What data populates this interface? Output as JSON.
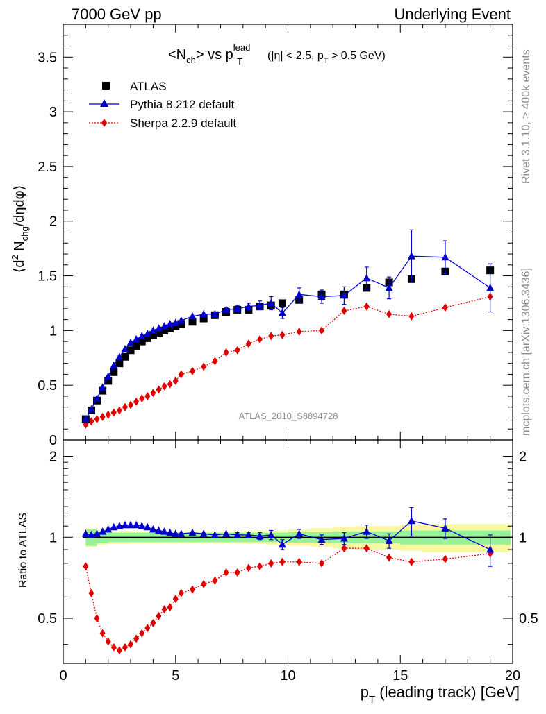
{
  "header": {
    "left": "7000 GeV pp",
    "right": "Underlying Event"
  },
  "side": {
    "rivet": "Rivet 3.1.10, ≥ 400k events",
    "mcplots": "mcplots.cern.ch [arXiv:1306.3436]"
  },
  "title": {
    "main": "<N",
    "main_sub": "ch",
    "vs": "> vs p",
    "vs_sup": "lead",
    "vs_sub": "T",
    "cond": "(|η| < 2.5, p",
    "cond_sub": "T",
    "cond_end": " > 0.5 GeV)"
  },
  "watermark": "ATLAS_2010_S8894728",
  "ylabel_top": {
    "pre": "⟨d",
    "sup": "2",
    "mid": " N",
    "sub": "chg",
    "post": "/dηdφ⟩"
  },
  "ylabel_bottom": "Ratio to ATLAS",
  "xlabel": {
    "pre": "p",
    "sub": "T",
    "post": " (leading track) [GeV]"
  },
  "legend": [
    {
      "label": "ATLAS",
      "color": "#000000",
      "marker": "square"
    },
    {
      "label": "Pythia 8.212 default",
      "color": "#0000cc",
      "marker": "triangle"
    },
    {
      "label": "Sherpa 2.2.9 default",
      "color": "#e00000",
      "marker": "diamond"
    }
  ],
  "colors": {
    "atlas": "#000000",
    "pythia": "#0000cc",
    "sherpa": "#e00000",
    "band_inner": "#98f098",
    "band_outer": "#f8f8a0"
  },
  "chart_data": [
    {
      "type": "scatter",
      "xlim": [
        0,
        20
      ],
      "ylim": [
        0,
        3.8
      ],
      "xticks": [
        "0",
        "5",
        "10",
        "15",
        "20"
      ],
      "yticks": [
        "0",
        "0.5",
        "1",
        "1.5",
        "2",
        "2.5",
        "3",
        "3.5"
      ],
      "series": [
        {
          "name": "ATLAS",
          "x": [
            1.0,
            1.25,
            1.5,
            1.75,
            2.0,
            2.25,
            2.5,
            2.75,
            3.0,
            3.25,
            3.5,
            3.75,
            4.0,
            4.25,
            4.5,
            4.75,
            5.0,
            5.25,
            5.75,
            6.25,
            6.75,
            7.25,
            7.75,
            8.25,
            8.75,
            9.25,
            9.75,
            10.5,
            11.5,
            12.5,
            13.5,
            14.5,
            15.5,
            17.0,
            19.0
          ],
          "y": [
            0.19,
            0.27,
            0.36,
            0.45,
            0.54,
            0.62,
            0.7,
            0.76,
            0.82,
            0.86,
            0.9,
            0.93,
            0.96,
            0.98,
            1.0,
            1.02,
            1.04,
            1.06,
            1.08,
            1.11,
            1.14,
            1.17,
            1.19,
            1.19,
            1.22,
            1.23,
            1.25,
            1.28,
            1.33,
            1.33,
            1.39,
            1.44,
            1.47,
            1.54,
            1.55
          ]
        },
        {
          "name": "Pythia 8.212 default",
          "x": [
            1.0,
            1.25,
            1.5,
            1.75,
            2.0,
            2.25,
            2.5,
            2.75,
            3.0,
            3.25,
            3.5,
            3.75,
            4.0,
            4.25,
            4.5,
            4.75,
            5.0,
            5.25,
            5.75,
            6.25,
            6.75,
            7.25,
            7.75,
            8.25,
            8.75,
            9.25,
            9.75,
            10.5,
            11.5,
            12.5,
            13.5,
            14.5,
            15.5,
            17.0,
            19.0
          ],
          "y": [
            0.19,
            0.28,
            0.38,
            0.48,
            0.58,
            0.68,
            0.76,
            0.83,
            0.89,
            0.92,
            0.95,
            0.97,
            1.0,
            1.02,
            1.04,
            1.06,
            1.07,
            1.09,
            1.13,
            1.15,
            1.15,
            1.19,
            1.2,
            1.22,
            1.23,
            1.25,
            1.16,
            1.33,
            1.31,
            1.32,
            1.48,
            1.39,
            1.68,
            1.67,
            1.39
          ],
          "err": [
            0,
            0,
            0,
            0,
            0,
            0,
            0,
            0,
            0,
            0,
            0,
            0,
            0,
            0,
            0,
            0,
            0,
            0,
            0,
            0,
            0,
            0.02,
            0.03,
            0.03,
            0.04,
            0.06,
            0.05,
            0.06,
            0.06,
            0.08,
            0.1,
            0.1,
            0.24,
            0.15,
            0.22
          ]
        },
        {
          "name": "Sherpa 2.2.9 default",
          "x": [
            1.0,
            1.25,
            1.5,
            1.75,
            2.0,
            2.25,
            2.5,
            2.75,
            3.0,
            3.25,
            3.5,
            3.75,
            4.0,
            4.25,
            4.5,
            4.75,
            5.0,
            5.25,
            5.75,
            6.25,
            6.75,
            7.25,
            7.75,
            8.25,
            8.75,
            9.25,
            9.75,
            10.5,
            11.5,
            12.5,
            13.5,
            14.5,
            15.5,
            17.0,
            19.0
          ],
          "y": [
            0.14,
            0.17,
            0.19,
            0.21,
            0.23,
            0.25,
            0.27,
            0.3,
            0.32,
            0.35,
            0.38,
            0.4,
            0.43,
            0.46,
            0.49,
            0.51,
            0.54,
            0.6,
            0.63,
            0.67,
            0.72,
            0.8,
            0.82,
            0.88,
            0.92,
            0.95,
            0.96,
            0.99,
            1.0,
            1.18,
            1.22,
            1.15,
            1.13,
            1.21,
            1.31
          ]
        }
      ]
    },
    {
      "type": "scatter",
      "xlim": [
        0,
        20
      ],
      "ylim": [
        0.34,
        2.3
      ],
      "log_y": true,
      "yticks": [
        "0.5",
        "1",
        "2"
      ],
      "band_x": [
        1.0,
        1.5,
        2.0,
        3.0,
        4.0,
        5.0,
        6.0,
        7.0,
        8.0,
        9.0,
        10.0,
        11.0,
        12.0,
        13.0,
        14.0,
        15.0,
        16.0,
        17.0,
        18.0,
        19.0
      ],
      "band_inner": [
        0.07,
        0.05,
        0.04,
        0.04,
        0.04,
        0.04,
        0.04,
        0.04,
        0.04,
        0.04,
        0.045,
        0.045,
        0.05,
        0.05,
        0.05,
        0.06,
        0.06,
        0.06,
        0.06,
        0.06
      ],
      "band_outer": [
        0.08,
        0.06,
        0.055,
        0.05,
        0.05,
        0.05,
        0.05,
        0.05,
        0.055,
        0.06,
        0.07,
        0.08,
        0.09,
        0.1,
        0.1,
        0.11,
        0.12,
        0.12,
        0.12,
        0.12
      ],
      "series": [
        {
          "name": "Pythia 8.212 default",
          "x": [
            1.0,
            1.25,
            1.5,
            1.75,
            2.0,
            2.25,
            2.5,
            2.75,
            3.0,
            3.25,
            3.5,
            3.75,
            4.0,
            4.25,
            4.5,
            4.75,
            5.0,
            5.25,
            5.75,
            6.25,
            6.75,
            7.25,
            7.75,
            8.25,
            8.75,
            9.25,
            9.75,
            10.5,
            11.5,
            12.5,
            13.5,
            14.5,
            15.5,
            17.0,
            19.0
          ],
          "y": [
            1.03,
            1.02,
            1.03,
            1.05,
            1.07,
            1.09,
            1.1,
            1.11,
            1.11,
            1.11,
            1.1,
            1.09,
            1.07,
            1.06,
            1.05,
            1.04,
            1.03,
            1.03,
            1.04,
            1.03,
            1.02,
            1.03,
            1.02,
            1.02,
            1.01,
            1.02,
            0.94,
            1.03,
            0.98,
            0.99,
            1.05,
            0.97,
            1.15,
            1.08,
            0.9
          ],
          "err": [
            0,
            0,
            0,
            0,
            0,
            0,
            0,
            0,
            0,
            0,
            0,
            0,
            0,
            0,
            0,
            0,
            0,
            0,
            0,
            0,
            0,
            0,
            0.02,
            0.02,
            0.03,
            0.04,
            0.04,
            0.04,
            0.04,
            0.05,
            0.06,
            0.06,
            0.14,
            0.09,
            0.12
          ]
        },
        {
          "name": "Sherpa 2.2.9 default",
          "x": [
            1.0,
            1.25,
            1.5,
            1.75,
            2.0,
            2.25,
            2.5,
            2.75,
            3.0,
            3.25,
            3.5,
            3.75,
            4.0,
            4.25,
            4.5,
            4.75,
            5.0,
            5.25,
            5.75,
            6.25,
            6.75,
            7.25,
            7.75,
            8.25,
            8.75,
            9.25,
            9.75,
            10.5,
            11.5,
            12.5,
            13.5,
            14.5,
            15.5,
            17.0,
            19.0
          ],
          "y": [
            0.78,
            0.62,
            0.5,
            0.44,
            0.41,
            0.39,
            0.38,
            0.39,
            0.4,
            0.42,
            0.44,
            0.46,
            0.48,
            0.51,
            0.54,
            0.55,
            0.59,
            0.62,
            0.64,
            0.67,
            0.69,
            0.74,
            0.74,
            0.77,
            0.78,
            0.8,
            0.81,
            0.81,
            0.8,
            0.91,
            0.91,
            0.84,
            0.81,
            0.83,
            0.87
          ]
        }
      ]
    }
  ]
}
